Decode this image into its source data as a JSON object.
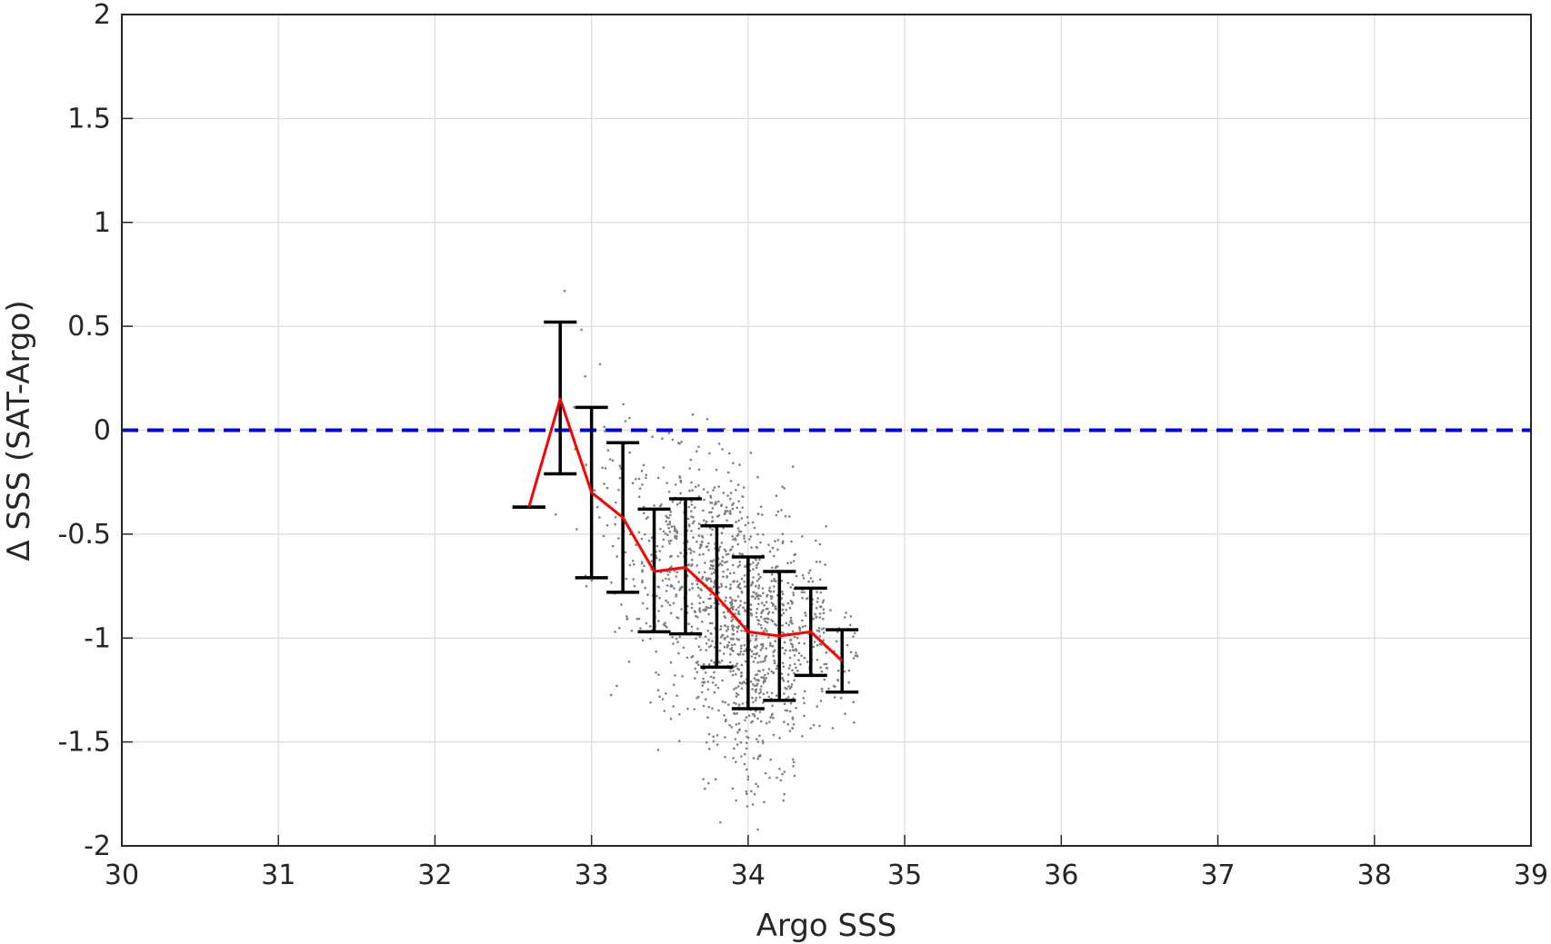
{
  "chart_data": {
    "type": "scatter",
    "title": "",
    "xlabel": "Argo SSS",
    "ylabel": "Δ SSS (SAT-Argo)",
    "xlim": [
      30,
      39
    ],
    "ylim": [
      -2,
      2
    ],
    "xticks": [
      30,
      31,
      32,
      33,
      34,
      35,
      36,
      37,
      38,
      39
    ],
    "yticks": [
      -2,
      -1.5,
      -1,
      -0.5,
      0,
      0.5,
      1,
      1.5,
      2
    ],
    "xtick_labels": [
      "30",
      "31",
      "32",
      "33",
      "34",
      "35",
      "36",
      "37",
      "38",
      "39"
    ],
    "ytick_labels": [
      "-2",
      "-1.5",
      "-1",
      "-0.5",
      "0",
      "0.5",
      "1",
      "1.5",
      "2"
    ],
    "grid": true,
    "colors": {
      "scatter": "#7f7f7f",
      "mean_line": "#ff0000",
      "error_bars": "#000000",
      "reference_line": "#0000dd",
      "grid": "#dcdcdc",
      "axes": "#262626"
    },
    "reference_line": {
      "y": 0,
      "style": "dashed"
    },
    "binned_mean": {
      "x": [
        32.6,
        32.8,
        33.0,
        33.2,
        33.4,
        33.6,
        33.8,
        34.0,
        34.2,
        34.4,
        34.6
      ],
      "y": [
        -0.37,
        0.15,
        -0.3,
        -0.42,
        -0.68,
        -0.66,
        -0.8,
        -0.97,
        -0.99,
        -0.97,
        -1.11
      ],
      "err_low": [
        -0.37,
        -0.21,
        -0.71,
        -0.78,
        -0.97,
        -0.98,
        -1.14,
        -1.34,
        -1.3,
        -1.18,
        -1.26
      ],
      "err_high": [
        -0.37,
        0.52,
        0.11,
        -0.06,
        -0.38,
        -0.33,
        -0.46,
        -0.61,
        -0.68,
        -0.76,
        -0.96
      ]
    },
    "scatter_description": "approximately 1500 grey points concentrated between Argo SSS 32.7 and 34.7"
  }
}
